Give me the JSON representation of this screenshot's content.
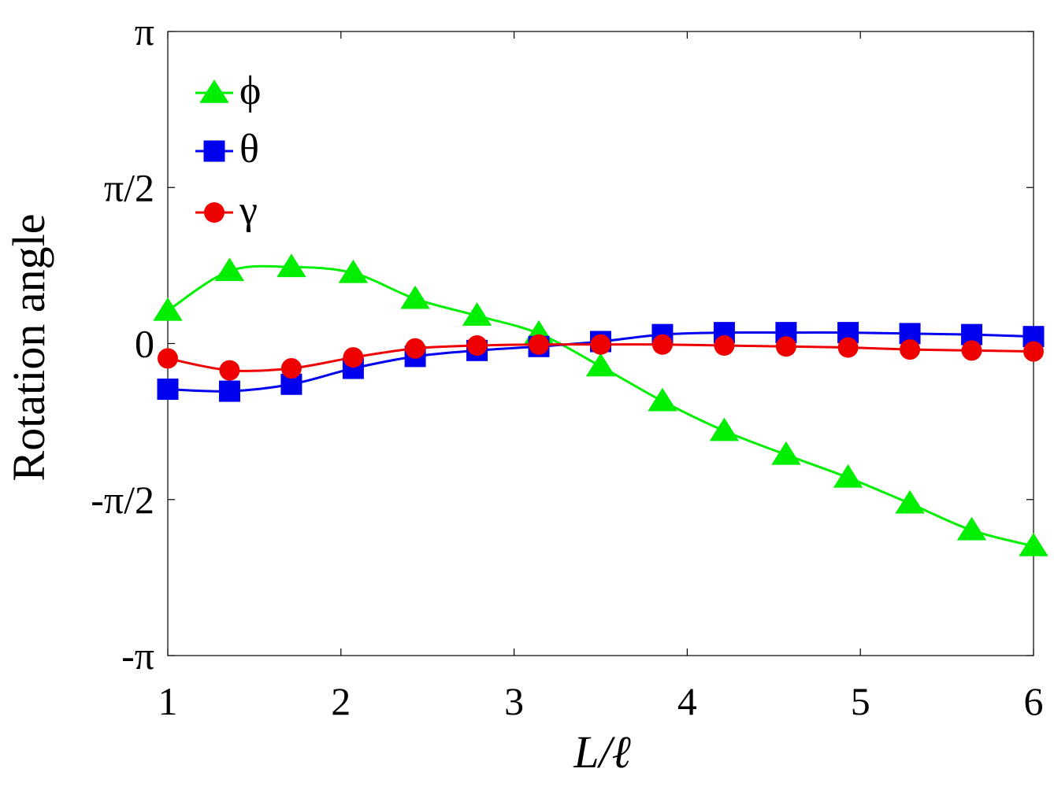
{
  "chart_data": {
    "type": "line",
    "xlabel": "L/ℓ",
    "ylabel": "Rotation angle",
    "xlim": [
      1,
      6
    ],
    "ylim": [
      -3.14159265,
      3.14159265
    ],
    "x_ticks": [
      {
        "value": 1,
        "label": "1"
      },
      {
        "value": 2,
        "label": "2"
      },
      {
        "value": 3,
        "label": "3"
      },
      {
        "value": 4,
        "label": "4"
      },
      {
        "value": 5,
        "label": "5"
      },
      {
        "value": 6,
        "label": "6"
      }
    ],
    "y_ticks": [
      {
        "value": -3.14159265,
        "label": "-π"
      },
      {
        "value": -1.57079633,
        "label": "-π/2"
      },
      {
        "value": 0,
        "label": "0"
      },
      {
        "value": 1.57079633,
        "label": "π/2"
      },
      {
        "value": 3.14159265,
        "label": "π"
      }
    ],
    "grid": false,
    "legend_position": "top-left",
    "series": [
      {
        "name": "ϕ",
        "color": "#00ee00",
        "marker": "triangle",
        "x": [
          1.0,
          1.357,
          1.714,
          2.071,
          2.429,
          2.786,
          3.143,
          3.5,
          3.857,
          4.214,
          4.571,
          4.929,
          5.286,
          5.643,
          6.0
        ],
        "y": [
          0.33,
          0.73,
          0.77,
          0.71,
          0.45,
          0.28,
          0.1,
          -0.23,
          -0.58,
          -0.88,
          -1.12,
          -1.35,
          -1.61,
          -1.88,
          -2.04
        ]
      },
      {
        "name": "θ",
        "color": "#0000ee",
        "marker": "square",
        "x": [
          1.0,
          1.357,
          1.714,
          2.071,
          2.429,
          2.786,
          3.143,
          3.5,
          3.857,
          4.214,
          4.571,
          4.929,
          5.286,
          5.643,
          6.0
        ],
        "y": [
          -0.46,
          -0.48,
          -0.41,
          -0.25,
          -0.13,
          -0.07,
          -0.03,
          0.02,
          0.09,
          0.11,
          0.11,
          0.11,
          0.1,
          0.09,
          0.07
        ]
      },
      {
        "name": "γ",
        "color": "#ee0000",
        "marker": "circle",
        "x": [
          1.0,
          1.357,
          1.714,
          2.071,
          2.429,
          2.786,
          3.143,
          3.5,
          3.857,
          4.214,
          4.571,
          4.929,
          5.286,
          5.643,
          6.0
        ],
        "y": [
          -0.15,
          -0.27,
          -0.25,
          -0.14,
          -0.05,
          -0.02,
          -0.01,
          -0.01,
          -0.01,
          -0.02,
          -0.03,
          -0.04,
          -0.06,
          -0.07,
          -0.08
        ]
      }
    ]
  }
}
